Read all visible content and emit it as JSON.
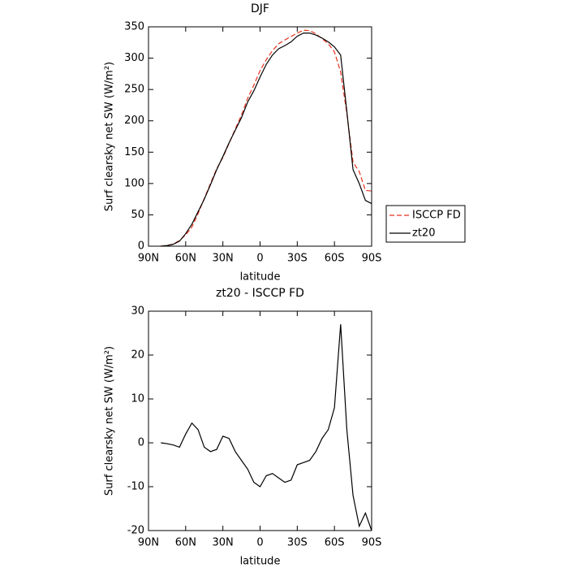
{
  "chart_data": [
    {
      "type": "line",
      "title": "DJF",
      "xlabel": "latitude",
      "ylabel": "Surf clearsky net SW (W/m²)",
      "x": [
        80,
        75,
        70,
        65,
        60,
        55,
        50,
        45,
        40,
        35,
        30,
        25,
        20,
        15,
        10,
        5,
        0,
        -5,
        -10,
        -15,
        -20,
        -25,
        -30,
        -35,
        -40,
        -45,
        -50,
        -55,
        -60,
        -65,
        -70,
        -75,
        -80,
        -85,
        -90
      ],
      "series": [
        {
          "name": "ISCCP FD",
          "color": "#e8301c",
          "line_style": "dashed",
          "values": [
            0,
            1.2,
            3.5,
            9,
            18,
            30.5,
            52,
            76,
            100,
            123.5,
            141.5,
            164,
            187,
            209,
            236,
            257,
            280,
            297.5,
            312,
            323,
            329,
            334.5,
            340,
            344.5,
            344,
            339,
            331,
            323,
            310,
            278,
            212,
            134,
            119,
            89,
            88
          ]
        },
        {
          "name": "zt20",
          "color": "#000000",
          "line_style": "solid",
          "values": [
            0,
            1,
            3,
            8,
            20,
            35,
            55,
            75,
            98,
            122,
            143,
            165,
            185,
            205,
            230,
            248,
            270,
            290,
            305,
            315,
            320,
            326,
            335,
            340,
            340,
            337,
            332,
            326,
            318,
            305,
            215,
            122,
            100,
            73,
            68
          ]
        }
      ],
      "xlim": [
        90,
        -90
      ],
      "xticks": [
        {
          "value": 90,
          "label": "90N"
        },
        {
          "value": 60,
          "label": "60N"
        },
        {
          "value": 30,
          "label": "30N"
        },
        0,
        {
          "value": -30,
          "label": "30S"
        },
        {
          "value": -60,
          "label": "60S"
        },
        {
          "value": -90,
          "label": "90S"
        }
      ],
      "ylim": [
        0,
        350
      ],
      "yticks": [
        0,
        50,
        100,
        150,
        200,
        250,
        300,
        350
      ],
      "legend": "right"
    },
    {
      "type": "line",
      "title": "zt20 - ISCCP FD",
      "xlabel": "latitude",
      "ylabel": "Surf clearsky net SW (W/m²)",
      "x": [
        80,
        75,
        70,
        65,
        60,
        55,
        50,
        45,
        40,
        35,
        30,
        25,
        20,
        15,
        10,
        5,
        0,
        -5,
        -10,
        -15,
        -20,
        -25,
        -30,
        -35,
        -40,
        -45,
        -50,
        -55,
        -60,
        -65,
        -70,
        -75,
        -80,
        -85,
        -90
      ],
      "series": [
        {
          "color": "#000000",
          "line_style": "solid",
          "values": [
            0,
            -0.2,
            -0.5,
            -1,
            2,
            4.5,
            3,
            -1,
            -2,
            -1.5,
            1.5,
            1,
            -2,
            -4,
            -6,
            -9,
            -10,
            -7.5,
            -7,
            -8,
            -9,
            -8.5,
            -5,
            -4.5,
            -4,
            -2,
            1,
            3,
            8,
            27,
            3,
            -12,
            -19,
            -16,
            -20
          ]
        }
      ],
      "xlim": [
        90,
        -90
      ],
      "xticks": [
        {
          "value": 90,
          "label": "90N"
        },
        {
          "value": 60,
          "label": "60N"
        },
        {
          "value": 30,
          "label": "30N"
        },
        0,
        {
          "value": -30,
          "label": "30S"
        },
        {
          "value": -60,
          "label": "60S"
        },
        {
          "value": -90,
          "label": "90S"
        }
      ],
      "ylim": [
        -20,
        30
      ],
      "yticks": [
        -20,
        -10,
        0,
        10,
        20,
        30
      ]
    }
  ]
}
